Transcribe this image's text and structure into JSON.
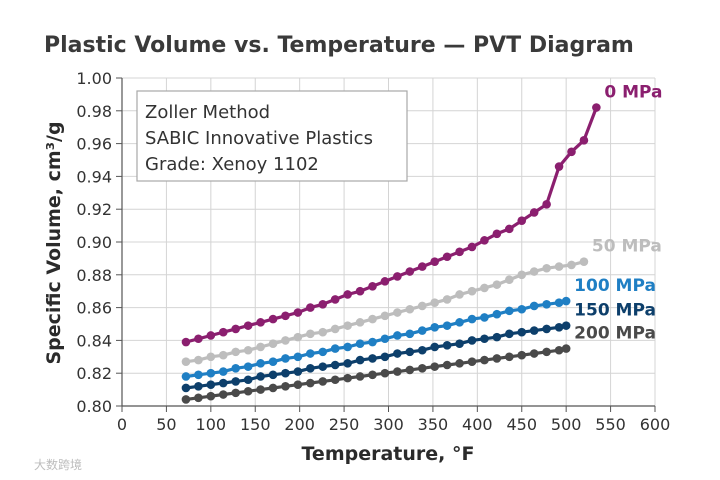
{
  "chart_data": {
    "type": "line",
    "title": "Plastic Volume vs. Temperature — PVT Diagram",
    "xlabel": "Temperature, °F",
    "ylabel": "Specific Volume, cm³/g",
    "xlim": [
      0,
      600
    ],
    "ylim": [
      0.8,
      1.0
    ],
    "x_ticks": [
      "0",
      "50",
      "100",
      "150",
      "200",
      "250",
      "300",
      "350",
      "400",
      "450",
      "500",
      "550",
      "600"
    ],
    "y_ticks": [
      "0.80",
      "0.82",
      "0.84",
      "0.86",
      "0.88",
      "0.90",
      "0.92",
      "0.94",
      "0.96",
      "0.98",
      "1.00"
    ],
    "grid": true,
    "annotation": [
      "Zoller Method",
      "SABIC Innovative Plastics",
      "Grade: Xenoy 1102"
    ],
    "series": [
      {
        "name": "0 MPa",
        "color": "#8b1f6f",
        "x": [
          72,
          86,
          100,
          114,
          128,
          142,
          156,
          170,
          184,
          198,
          212,
          226,
          240,
          254,
          268,
          282,
          296,
          310,
          324,
          338,
          352,
          366,
          380,
          394,
          408,
          422,
          436,
          450,
          464,
          478,
          492,
          506,
          520,
          534
        ],
        "y": [
          0.839,
          0.841,
          0.843,
          0.845,
          0.847,
          0.849,
          0.851,
          0.853,
          0.855,
          0.857,
          0.86,
          0.862,
          0.865,
          0.868,
          0.87,
          0.873,
          0.876,
          0.879,
          0.882,
          0.885,
          0.888,
          0.891,
          0.894,
          0.897,
          0.901,
          0.905,
          0.908,
          0.913,
          0.918,
          0.923,
          0.946,
          0.955,
          0.962,
          0.982
        ]
      },
      {
        "name": "50 MPa",
        "color": "#bdbdbd",
        "x": [
          72,
          86,
          100,
          114,
          128,
          142,
          156,
          170,
          184,
          198,
          212,
          226,
          240,
          254,
          268,
          282,
          296,
          310,
          324,
          338,
          352,
          366,
          380,
          394,
          408,
          422,
          436,
          450,
          464,
          478,
          492,
          506,
          520
        ],
        "y": [
          0.827,
          0.828,
          0.83,
          0.831,
          0.833,
          0.834,
          0.836,
          0.838,
          0.84,
          0.842,
          0.844,
          0.845,
          0.847,
          0.849,
          0.851,
          0.853,
          0.855,
          0.857,
          0.859,
          0.861,
          0.863,
          0.865,
          0.868,
          0.87,
          0.872,
          0.874,
          0.877,
          0.88,
          0.882,
          0.884,
          0.885,
          0.886,
          0.888
        ]
      },
      {
        "name": "100 MPa",
        "color": "#1f7fc4",
        "x": [
          72,
          86,
          100,
          114,
          128,
          142,
          156,
          170,
          184,
          198,
          212,
          226,
          240,
          254,
          268,
          282,
          296,
          310,
          324,
          338,
          352,
          366,
          380,
          394,
          408,
          422,
          436,
          450,
          464,
          478,
          492,
          500
        ],
        "y": [
          0.818,
          0.819,
          0.82,
          0.821,
          0.823,
          0.824,
          0.826,
          0.827,
          0.829,
          0.83,
          0.832,
          0.833,
          0.835,
          0.836,
          0.838,
          0.839,
          0.841,
          0.843,
          0.844,
          0.846,
          0.848,
          0.849,
          0.851,
          0.853,
          0.854,
          0.856,
          0.858,
          0.859,
          0.861,
          0.862,
          0.863,
          0.864
        ]
      },
      {
        "name": "150 MPa",
        "color": "#0d3f6b",
        "x": [
          72,
          86,
          100,
          114,
          128,
          142,
          156,
          170,
          184,
          198,
          212,
          226,
          240,
          254,
          268,
          282,
          296,
          310,
          324,
          338,
          352,
          366,
          380,
          394,
          408,
          422,
          436,
          450,
          464,
          478,
          492,
          500
        ],
        "y": [
          0.811,
          0.812,
          0.813,
          0.814,
          0.815,
          0.816,
          0.818,
          0.819,
          0.82,
          0.821,
          0.823,
          0.824,
          0.825,
          0.826,
          0.828,
          0.829,
          0.83,
          0.832,
          0.833,
          0.834,
          0.836,
          0.837,
          0.838,
          0.84,
          0.841,
          0.842,
          0.844,
          0.845,
          0.846,
          0.847,
          0.848,
          0.849
        ]
      },
      {
        "name": "200 MPa",
        "color": "#4a4a4a",
        "x": [
          72,
          86,
          100,
          114,
          128,
          142,
          156,
          170,
          184,
          198,
          212,
          226,
          240,
          254,
          268,
          282,
          296,
          310,
          324,
          338,
          352,
          366,
          380,
          394,
          408,
          422,
          436,
          450,
          464,
          478,
          492,
          500
        ],
        "y": [
          0.804,
          0.805,
          0.806,
          0.807,
          0.808,
          0.809,
          0.81,
          0.811,
          0.812,
          0.813,
          0.814,
          0.815,
          0.816,
          0.817,
          0.818,
          0.819,
          0.82,
          0.821,
          0.822,
          0.823,
          0.824,
          0.825,
          0.826,
          0.827,
          0.828,
          0.829,
          0.83,
          0.831,
          0.832,
          0.833,
          0.834,
          0.835
        ]
      }
    ]
  },
  "watermark": "大数跨境"
}
